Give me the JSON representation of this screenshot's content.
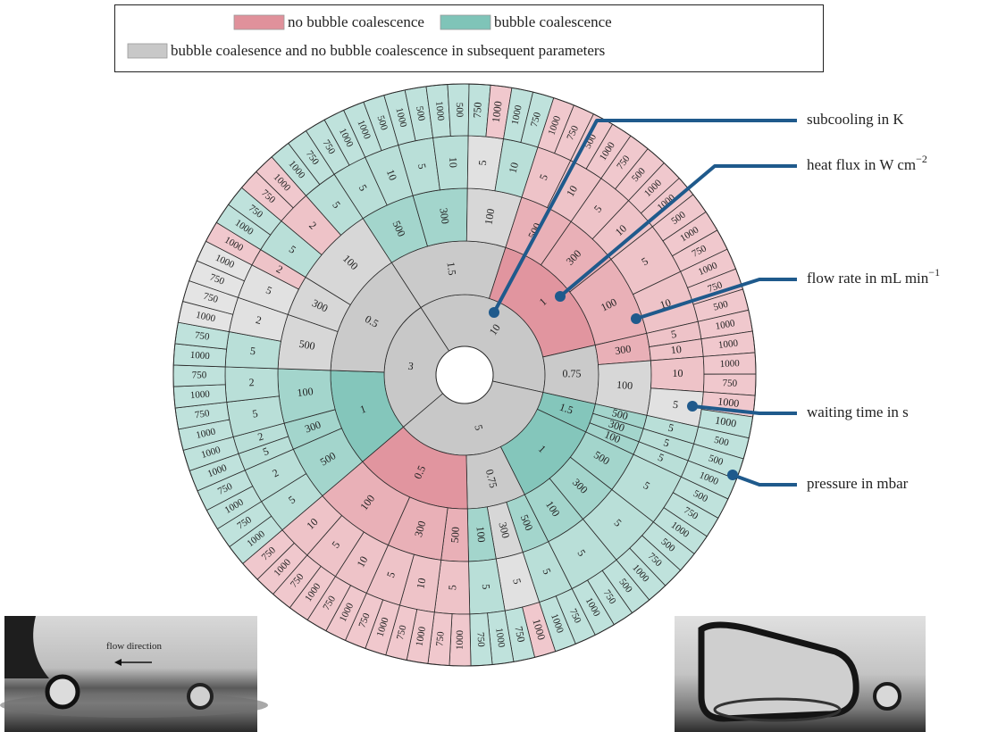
{
  "legend": [
    {
      "label": "no bubble coalescence",
      "color": "#e0919b"
    },
    {
      "label": "bubble coalescence",
      "color": "#7fc4b8"
    },
    {
      "label": "bubble coalesence and no bubble coalescence in subsequent parameters",
      "color": "#c8c8c8"
    }
  ],
  "axes": [
    {
      "text": "subcooling in K"
    },
    {
      "text": "heat flux in W cm",
      "sup": "−2"
    },
    {
      "text": "flow rate in mL min",
      "sup": "−1"
    },
    {
      "text": "waiting time in s"
    },
    {
      "text": "pressure in mbar"
    }
  ],
  "photo": {
    "caption": "flow direction"
  },
  "tree": [
    {
      "label": "10",
      "outcome": 2,
      "children": [
        {
          "label": "1.5",
          "outcome": 2,
          "children": [
            {
              "label": "500",
              "outcome": 1,
              "children": [
                {
                  "label": "5",
                  "outcome": 1,
                  "children": [
                    "750",
                    "1000"
                  ]
                },
                {
                  "label": "10",
                  "outcome": 1,
                  "children": [
                    "1000",
                    "500"
                  ]
                }
              ]
            },
            {
              "label": "300",
              "outcome": 1,
              "children": [
                {
                  "label": "5",
                  "outcome": 1,
                  "children": [
                    "1000",
                    "500"
                  ]
                },
                {
                  "label": "10",
                  "outcome": 1,
                  "children": [
                    "1000",
                    "500"
                  ]
                }
              ]
            },
            {
              "label": "100",
              "outcome": 2,
              "children": [
                {
                  "label": "5",
                  "outcome": 2,
                  "children": [
                    {
                      "label": "750",
                      "outcome": 1
                    },
                    {
                      "label": "1000",
                      "outcome": 0
                    }
                  ]
                },
                {
                  "label": "10",
                  "outcome": 1,
                  "children": [
                    "1000",
                    "750"
                  ]
                }
              ]
            }
          ]
        },
        {
          "label": "1",
          "outcome": 0,
          "children": [
            {
              "label": "500",
              "outcome": 0,
              "children": [
                {
                  "label": "5",
                  "outcome": 0,
                  "children": [
                    "1000",
                    "750"
                  ]
                },
                {
                  "label": "10",
                  "outcome": 0,
                  "children": [
                    "500",
                    "1000"
                  ]
                }
              ]
            },
            {
              "label": "300",
              "outcome": 0,
              "children": [
                {
                  "label": "5",
                  "outcome": 0,
                  "children": [
                    "750",
                    "500"
                  ]
                },
                {
                  "label": "10",
                  "outcome": 0,
                  "children": [
                    "1000",
                    "1000"
                  ]
                }
              ]
            },
            {
              "label": "100",
              "outcome": 0,
              "children": [
                {
                  "label": "5",
                  "outcome": 0,
                  "children": [
                    "500",
                    "1000",
                    "750"
                  ]
                },
                {
                  "label": "10",
                  "outcome": 0,
                  "children": [
                    "1000",
                    "750",
                    "500"
                  ]
                }
              ]
            }
          ]
        },
        {
          "label": "0.75",
          "outcome": 2,
          "children": [
            {
              "label": "300",
              "outcome": 0,
              "children": [
                {
                  "label": "5",
                  "outcome": 0,
                  "children": [
                    "1000"
                  ]
                },
                {
                  "label": "10",
                  "outcome": 0,
                  "children": [
                    "1000"
                  ]
                }
              ]
            },
            {
              "label": "100",
              "outcome": 2,
              "children": [
                {
                  "label": "10",
                  "outcome": 0,
                  "children": [
                    "1000",
                    "750"
                  ]
                },
                {
                  "label": "5",
                  "outcome": 2,
                  "children": [
                    {
                      "label": "1000",
                      "outcome": 0
                    },
                    {
                      "label": "1000",
                      "outcome": 1
                    }
                  ]
                }
              ]
            }
          ]
        }
      ]
    },
    {
      "label": "5",
      "outcome": 2,
      "children": [
        {
          "label": "1.5",
          "outcome": 1,
          "children": [
            {
              "label": "500",
              "outcome": 1,
              "children": [
                {
                  "label": "5",
                  "outcome": 1,
                  "children": [
                    "500"
                  ]
                }
              ]
            },
            {
              "label": "300",
              "outcome": 1,
              "children": [
                {
                  "label": "5",
                  "outcome": 1,
                  "children": [
                    "500"
                  ]
                }
              ]
            },
            {
              "label": "100",
              "outcome": 1,
              "children": [
                {
                  "label": "5",
                  "outcome": 1,
                  "children": [
                    "1000"
                  ]
                }
              ]
            }
          ]
        },
        {
          "label": "1",
          "outcome": 1,
          "children": [
            {
              "label": "500",
              "outcome": 1,
              "children": [
                {
                  "label": "5",
                  "outcome": 1,
                  "children": [
                    "500",
                    "750",
                    "1000"
                  ]
                }
              ]
            },
            {
              "label": "300",
              "outcome": 1,
              "children": [
                {
                  "label": "5",
                  "outcome": 1,
                  "children": [
                    "500",
                    "750",
                    "1000"
                  ]
                }
              ]
            },
            {
              "label": "100",
              "outcome": 1,
              "children": [
                {
                  "label": "5",
                  "outcome": 1,
                  "children": [
                    "500",
                    "750",
                    "1000"
                  ]
                }
              ]
            }
          ]
        },
        {
          "label": "0.75",
          "outcome": 2,
          "children": [
            {
              "label": "500",
              "outcome": 1,
              "children": [
                {
                  "label": "5",
                  "outcome": 1,
                  "children": [
                    "750",
                    "1000"
                  ]
                }
              ]
            },
            {
              "label": "300",
              "outcome": 2,
              "children": [
                {
                  "label": "5",
                  "outcome": 2,
                  "children": [
                    {
                      "label": "1000",
                      "outcome": 0
                    },
                    {
                      "label": "750",
                      "outcome": 1
                    }
                  ]
                }
              ]
            },
            {
              "label": "100",
              "outcome": 1,
              "children": [
                {
                  "label": "5",
                  "outcome": 1,
                  "children": [
                    "1000",
                    "750"
                  ]
                }
              ]
            }
          ]
        },
        {
          "label": "0.5",
          "outcome": 0,
          "children": [
            {
              "label": "500",
              "outcome": 0,
              "children": [
                {
                  "label": "5",
                  "outcome": 0,
                  "children": [
                    "1000",
                    "750"
                  ]
                }
              ]
            },
            {
              "label": "300",
              "outcome": 0,
              "children": [
                {
                  "label": "10",
                  "outcome": 0,
                  "children": [
                    "1000",
                    "750"
                  ]
                },
                {
                  "label": "5",
                  "outcome": 0,
                  "children": [
                    "1000",
                    "750"
                  ]
                }
              ]
            },
            {
              "label": "100",
              "outcome": 0,
              "children": [
                {
                  "label": "10",
                  "outcome": 0,
                  "children": [
                    "1000",
                    "750"
                  ]
                },
                {
                  "label": "5",
                  "outcome": 0,
                  "children": [
                    "1000",
                    "750"
                  ]
                },
                {
                  "label": "10",
                  "outcome": 0,
                  "children": [
                    "1000",
                    "750"
                  ]
                }
              ]
            }
          ]
        }
      ]
    },
    {
      "label": "3",
      "outcome": 2,
      "children": [
        {
          "label": "1",
          "outcome": 1,
          "children": [
            {
              "label": "500",
              "outcome": 1,
              "children": [
                {
                  "label": "5",
                  "outcome": 1,
                  "children": [
                    "1000",
                    "750"
                  ]
                },
                {
                  "label": "2",
                  "outcome": 1,
                  "children": [
                    "1000",
                    "750"
                  ]
                }
              ]
            },
            {
              "label": "300",
              "outcome": 1,
              "children": [
                {
                  "label": "5",
                  "outcome": 1,
                  "children": [
                    "1000"
                  ]
                },
                {
                  "label": "2",
                  "outcome": 1,
                  "children": [
                    "1000"
                  ]
                }
              ]
            },
            {
              "label": "100",
              "outcome": 1,
              "children": [
                {
                  "label": "5",
                  "outcome": 1,
                  "children": [
                    "1000",
                    "750"
                  ]
                },
                {
                  "label": "2",
                  "outcome": 1,
                  "children": [
                    "1000",
                    "750"
                  ]
                }
              ]
            }
          ]
        },
        {
          "label": "0.5",
          "outcome": 2,
          "children": [
            {
              "label": "500",
              "outcome": 2,
              "children": [
                {
                  "label": "5",
                  "outcome": 1,
                  "children": [
                    "1000",
                    "750"
                  ]
                },
                {
                  "label": "2",
                  "outcome": 2,
                  "children": [
                    "1000",
                    "750"
                  ]
                }
              ]
            },
            {
              "label": "300",
              "outcome": 2,
              "children": [
                {
                  "label": "5",
                  "outcome": 2,
                  "children": [
                    "750",
                    "1000"
                  ]
                },
                {
                  "label": "2",
                  "outcome": 0,
                  "children": [
                    "1000"
                  ]
                }
              ]
            },
            {
              "label": "100",
              "outcome": 2,
              "children": [
                {
                  "label": "5",
                  "outcome": 1,
                  "children": [
                    "1000",
                    "750"
                  ]
                },
                {
                  "label": "2",
                  "outcome": 0,
                  "children": [
                    "750",
                    "1000"
                  ]
                },
                {
                  "label": "5",
                  "outcome": 1,
                  "children": [
                    "1000",
                    "750"
                  ]
                }
              ]
            }
          ]
        }
      ]
    }
  ]
}
